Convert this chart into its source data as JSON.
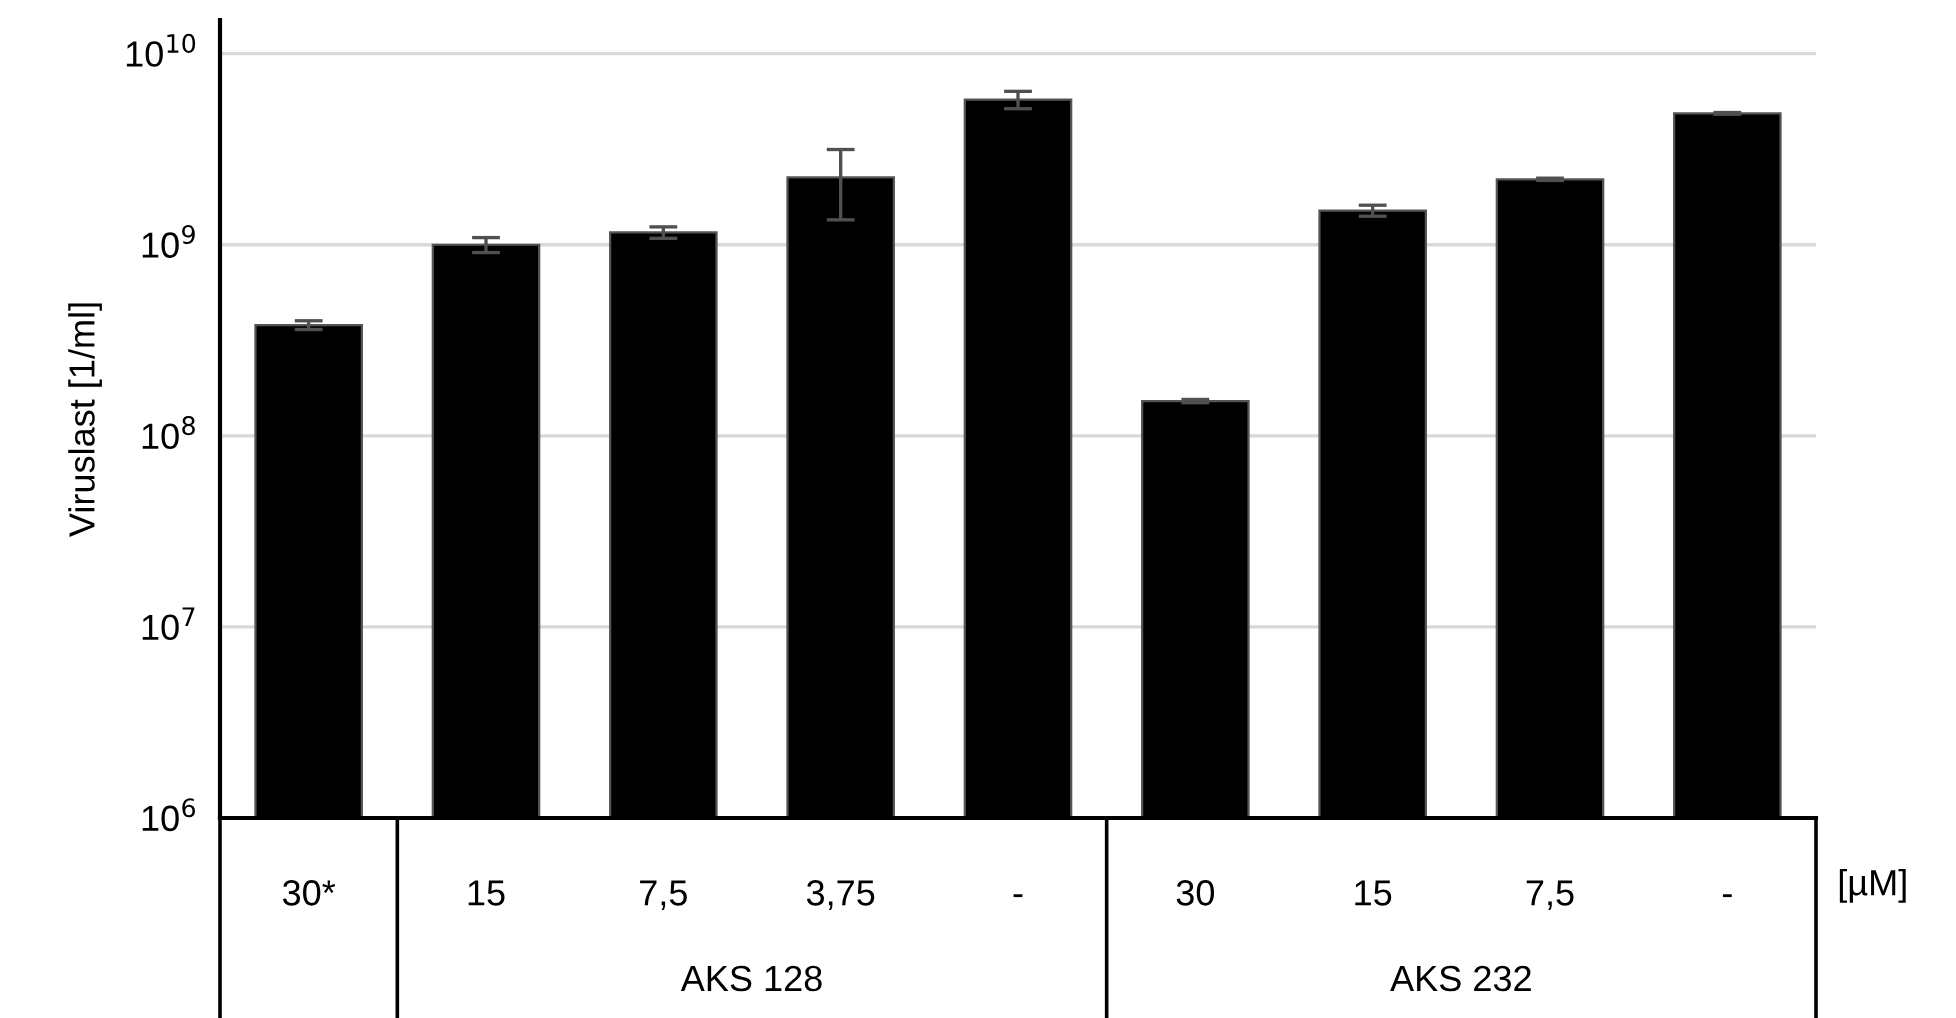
{
  "chart_data": {
    "type": "bar",
    "ylabel": "Viruslast [1/ml]",
    "categories": [
      "30*",
      "15",
      "7,5",
      "3,75",
      "-",
      "30",
      "15",
      "7,5",
      "-"
    ],
    "values": [
      380000000,
      1000000000,
      1160000000,
      2250000000,
      5750000000,
      152000000,
      1510000000,
      2200000000,
      4870000000
    ],
    "errors": [
      20000000,
      90000000,
      80000000,
      900000000,
      600000000,
      3000000,
      100000000,
      30000000,
      50000000
    ],
    "color": "#000000",
    "log": "y",
    "ylim": [
      1000000,
      15000000000
    ],
    "yticks": [
      {
        "value": 1000000,
        "label": "10$^{6}$"
      },
      {
        "value": 10000000,
        "label": "10$^{7}$"
      },
      {
        "value": 100000000,
        "label": "10$^{8}$"
      },
      {
        "value": 1000000000,
        "label": "10$^{9}$"
      },
      {
        "value": 10000000000,
        "label": "10$^{10}$"
      }
    ],
    "grid": "y",
    "annotations": [
      "[µM]",
      "AKS 128",
      "AKS 232"
    ]
  }
}
